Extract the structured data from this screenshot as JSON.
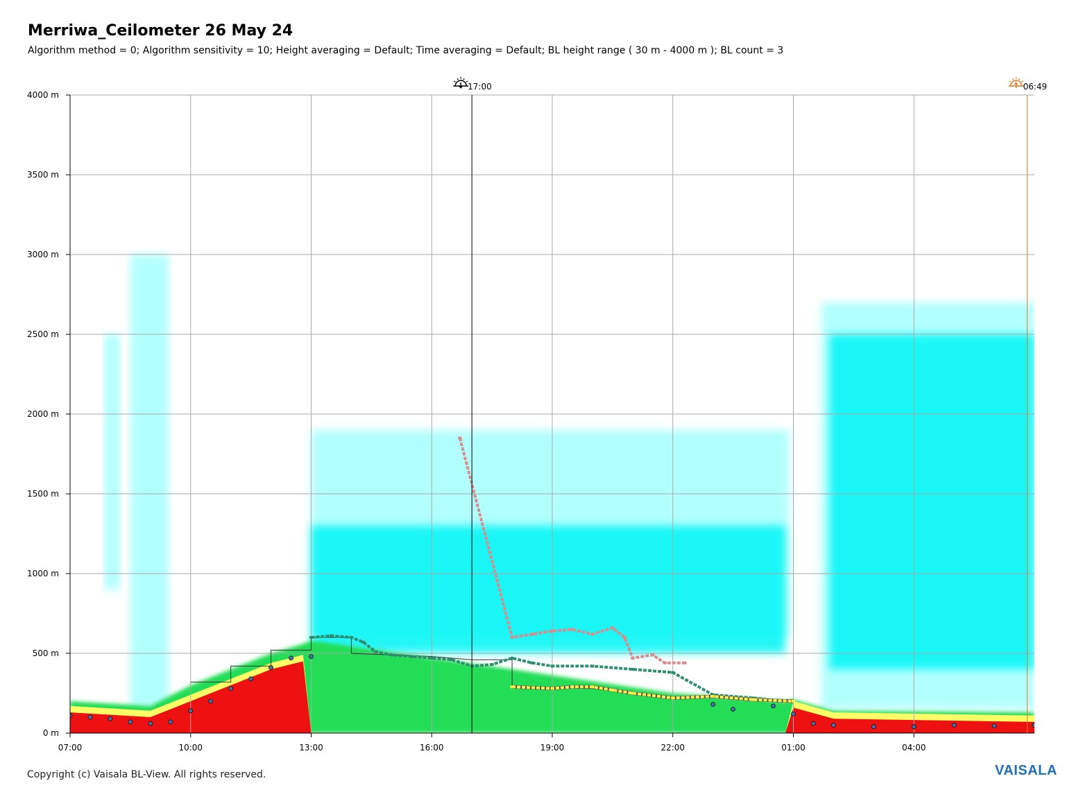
{
  "header": {
    "title": "Merriwa_Ceilometer 26 May 24",
    "subtitle": "Algorithm method = 0; Algorithm sensitivity = 10; Height averaging = Default; Time averaging = Default; BL height range ( 30 m - 4000 m ); BL count = 3"
  },
  "footer": {
    "copyright": "Copyright (c) Vaisala BL-View. All rights reserved.",
    "brand": "VAISALA"
  },
  "colors": {
    "cyan_light": "#aaffff",
    "cyan": "#00f5f5",
    "green": "#22dd55",
    "yellow": "#ffff66",
    "red": "#ee1111",
    "bl_teal": "#2e8f6f",
    "bl_pink": "#d98c8c",
    "bl_yellow": "#ffee44",
    "marker_blue": "#4a6fa8",
    "sunset": "#000000",
    "sunrise": "#e07820",
    "grid": "#a8a8a8"
  },
  "chart_data": {
    "type": "heatmap",
    "title": "Merriwa_Ceilometer 26 May 24",
    "x_tick_labels": [
      "07:00",
      "10:00",
      "13:00",
      "16:00",
      "19:00",
      "22:00",
      "01:00",
      "04:00"
    ],
    "y_tick_labels": [
      "0 m",
      "500 m",
      "1000 m",
      "1500 m",
      "2000 m",
      "2500 m",
      "3000 m",
      "3500 m",
      "4000 m"
    ],
    "x_range_hours": [
      7.0,
      31.0
    ],
    "y_range_m": [
      0,
      4000
    ],
    "grid": true,
    "sun_events": [
      {
        "name": "sunset",
        "label": "17:00",
        "t": 17.0
      },
      {
        "name": "sunrise",
        "label": "06:49",
        "t": 30.82
      }
    ],
    "backscatter_regions": [
      {
        "t0": 7.85,
        "t1": 8.25,
        "y0": 900,
        "y1": 2500,
        "level": "cyan_light"
      },
      {
        "t0": 8.5,
        "t1": 9.45,
        "y0": 150,
        "y1": 3000,
        "level": "cyan_light"
      },
      {
        "t0": 13.0,
        "t1": 24.9,
        "y0": 600,
        "y1": 1900,
        "level": "cyan_light"
      },
      {
        "t0": 13.0,
        "t1": 24.8,
        "y0": 500,
        "y1": 1300,
        "level": "cyan"
      },
      {
        "t0": 25.7,
        "t1": 31.0,
        "y0": 150,
        "y1": 2700,
        "level": "cyan_light"
      },
      {
        "t0": 25.9,
        "t1": 31.0,
        "y0": 400,
        "y1": 2500,
        "level": "cyan"
      }
    ],
    "surface_layer": [
      {
        "t": 7.0,
        "red_top": 130,
        "green_top": 200
      },
      {
        "t": 9.0,
        "red_top": 100,
        "green_top": 170
      },
      {
        "t": 10.0,
        "red_top": 200,
        "green_top": 300
      },
      {
        "t": 11.0,
        "red_top": 300,
        "green_top": 400
      },
      {
        "t": 12.0,
        "red_top": 400,
        "green_top": 500
      },
      {
        "t": 12.8,
        "red_top": 450,
        "green_top": 560
      },
      {
        "t": 13.0,
        "red_top": 0,
        "green_top": 580
      },
      {
        "t": 18.0,
        "red_top": 0,
        "green_top": 400
      },
      {
        "t": 22.0,
        "red_top": 0,
        "green_top": 250
      },
      {
        "t": 24.8,
        "red_top": 0,
        "green_top": 200
      },
      {
        "t": 25.0,
        "red_top": 160,
        "green_top": 210
      },
      {
        "t": 26.0,
        "red_top": 90,
        "green_top": 140
      },
      {
        "t": 31.0,
        "red_top": 70,
        "green_top": 130
      }
    ],
    "series": [
      {
        "marker": "teal-dash",
        "points": [
          [
            13.0,
            600
          ],
          [
            13.5,
            610
          ],
          [
            14.0,
            600
          ],
          [
            14.3,
            570
          ],
          [
            14.6,
            510
          ],
          [
            15.0,
            490
          ],
          [
            15.5,
            480
          ],
          [
            16.0,
            470
          ],
          [
            16.5,
            460
          ],
          [
            17.0,
            420
          ],
          [
            17.5,
            430
          ],
          [
            18.0,
            470
          ],
          [
            18.5,
            440
          ],
          [
            19.0,
            420
          ],
          [
            20.0,
            420
          ],
          [
            21.0,
            400
          ],
          [
            22.0,
            380
          ],
          [
            23.0,
            240
          ],
          [
            24.0,
            220
          ],
          [
            24.8,
            200
          ]
        ]
      },
      {
        "marker": "pink-dash",
        "points": [
          [
            16.7,
            1850
          ],
          [
            18.0,
            600
          ],
          [
            18.5,
            620
          ],
          [
            19.0,
            640
          ],
          [
            19.5,
            650
          ],
          [
            20.0,
            620
          ],
          [
            20.5,
            660
          ],
          [
            20.8,
            600
          ],
          [
            21.0,
            470
          ],
          [
            21.5,
            490
          ],
          [
            21.8,
            440
          ],
          [
            22.3,
            440
          ]
        ]
      },
      {
        "marker": "yellow-dash",
        "points": [
          [
            18.0,
            290
          ],
          [
            19.0,
            280
          ],
          [
            19.5,
            290
          ],
          [
            20.0,
            290
          ],
          [
            20.5,
            270
          ],
          [
            21.0,
            250
          ],
          [
            22.0,
            220
          ],
          [
            23.0,
            230
          ],
          [
            24.0,
            210
          ],
          [
            25.0,
            200
          ]
        ]
      },
      {
        "marker": "blue-circle",
        "points": [
          [
            7.0,
            110
          ],
          [
            7.5,
            100
          ],
          [
            8.0,
            90
          ],
          [
            8.5,
            70
          ],
          [
            9.0,
            60
          ],
          [
            9.5,
            70
          ],
          [
            10.0,
            140
          ],
          [
            10.5,
            200
          ],
          [
            11.0,
            280
          ],
          [
            11.5,
            340
          ],
          [
            12.0,
            410
          ],
          [
            12.5,
            470
          ],
          [
            13.0,
            480
          ],
          [
            23.0,
            180
          ],
          [
            23.5,
            150
          ],
          [
            24.5,
            170
          ],
          [
            25.0,
            120
          ],
          [
            25.5,
            60
          ],
          [
            26.0,
            50
          ],
          [
            27.0,
            40
          ],
          [
            28.0,
            40
          ],
          [
            29.0,
            50
          ],
          [
            30.0,
            45
          ],
          [
            31.0,
            50
          ]
        ]
      }
    ],
    "thin_line": {
      "points": [
        [
          10.0,
          320
        ],
        [
          11.0,
          320
        ],
        [
          11.0,
          420
        ],
        [
          12.0,
          420
        ],
        [
          12.0,
          520
        ],
        [
          13.0,
          520
        ],
        [
          13.0,
          600
        ],
        [
          14.0,
          600
        ],
        [
          14.0,
          500
        ],
        [
          16.0,
          480
        ],
        [
          17.0,
          460
        ],
        [
          18.0,
          460
        ],
        [
          18.0,
          290
        ],
        [
          20.0,
          280
        ],
        [
          21.0,
          250
        ],
        [
          22.0,
          220
        ],
        [
          23.0,
          220
        ],
        [
          25.0,
          210
        ]
      ]
    }
  }
}
